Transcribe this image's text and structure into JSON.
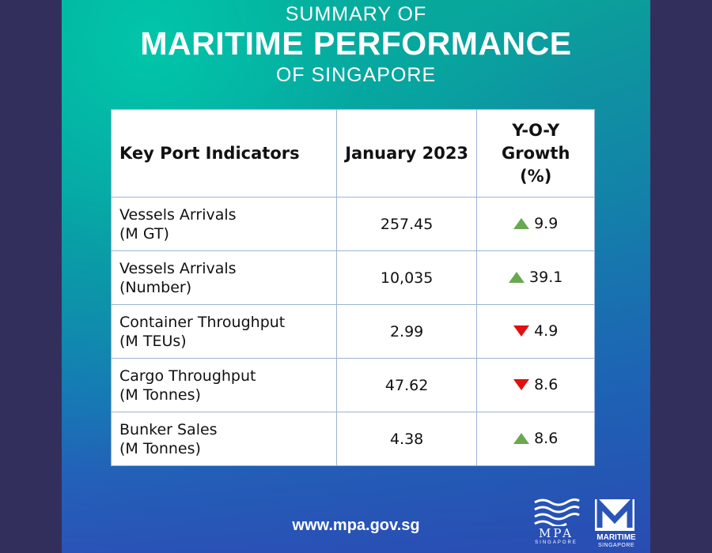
{
  "header": {
    "line1": "SUMMARY OF",
    "line2": "MARITIME PERFORMANCE",
    "line3": "OF SINGAPORE"
  },
  "table": {
    "headers": {
      "indicator": "Key Port Indicators",
      "period": "January 2023",
      "growth_line1": "Y-O-Y",
      "growth_line2": "Growth",
      "growth_line3": "(%)"
    },
    "rows": [
      {
        "label1": "Vessels Arrivals",
        "label2": "(M GT)",
        "value": "257.45",
        "growth": "9.9",
        "trend": "up"
      },
      {
        "label1": "Vessels Arrivals",
        "label2": "(Number)",
        "value": "10,035",
        "growth": "39.1",
        "trend": "up"
      },
      {
        "label1": "Container Throughput",
        "label2": "(M TEUs)",
        "value": "2.99",
        "growth": "4.9",
        "trend": "down"
      },
      {
        "label1": "Cargo Throughput",
        "label2": "(M Tonnes)",
        "value": "47.62",
        "growth": "8.6",
        "trend": "down"
      },
      {
        "label1": "Bunker Sales",
        "label2": "(M Tonnes)",
        "value": "4.38",
        "growth": "8.6",
        "trend": "up"
      }
    ]
  },
  "footer": {
    "url": "www.mpa.gov.sg",
    "mpa_logo_word": "MPA",
    "mpa_logo_sub": "SINGAPORE",
    "ms_logo_word": "MARITIME",
    "ms_logo_sub": "SINGAPORE"
  },
  "colors": {
    "up": "#6aa84f",
    "down": "#e01010",
    "frame": "#332f5c"
  }
}
